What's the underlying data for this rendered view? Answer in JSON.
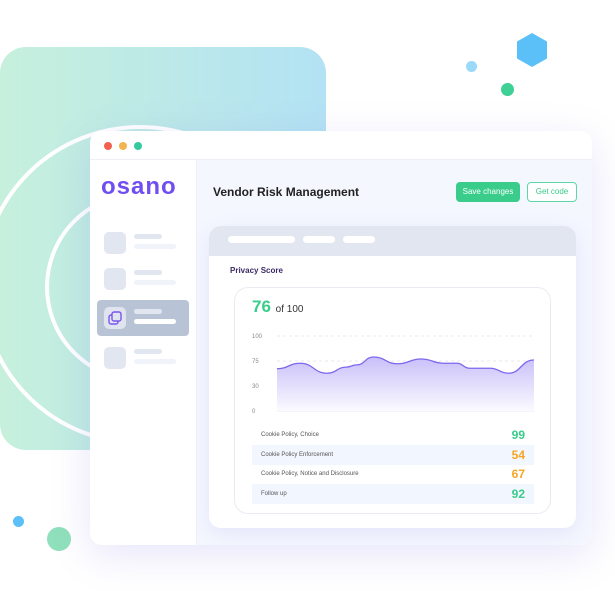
{
  "window": {
    "title": "Vendor Risk Management",
    "buttons": {
      "save": "Save changes",
      "get_code": "Get code"
    }
  },
  "sidebar": {
    "logo": "osano",
    "items": [
      {
        "active": false
      },
      {
        "active": false
      },
      {
        "active": true,
        "icon": "copy-icon"
      },
      {
        "active": false
      }
    ]
  },
  "card": {
    "section_title": "Privacy Score",
    "score": "76",
    "score_suffix": "of 100"
  },
  "chart_data": {
    "type": "area",
    "y_ticks": [
      "100",
      "75",
      "30",
      "0"
    ],
    "grid": true,
    "color": "#7b68ee",
    "x": [
      0,
      9,
      19.5,
      27,
      31,
      37.5,
      47,
      56,
      65,
      70,
      75,
      83,
      90,
      100
    ],
    "values": [
      61,
      71,
      53,
      64,
      68,
      79,
      70,
      77,
      71,
      71,
      62,
      62,
      53,
      76
    ]
  },
  "rows": [
    {
      "label": "Cookie Policy, Choice",
      "value": "99",
      "color": "#39cc8a"
    },
    {
      "label": "Cookie Policy Enforcement",
      "value": "54",
      "color": "#f6a623"
    },
    {
      "label": "Cookie Policy, Notice and Disclosure",
      "value": "67",
      "color": "#f6a623"
    },
    {
      "label": "Follow up",
      "value": "92",
      "color": "#39cc8a"
    }
  ],
  "colors": {
    "accent": "#39cc8a",
    "brand": "#6f4ff2",
    "decor_blue": "#5bc0f8"
  }
}
